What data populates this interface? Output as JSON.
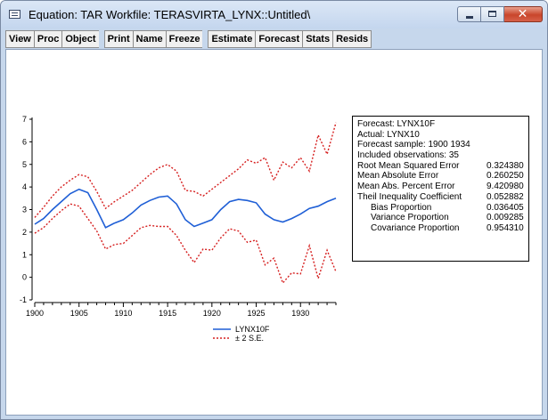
{
  "window": {
    "title": "Equation: TAR   Workfile: TERASVIRTA_LYNX::Untitled\\",
    "close_glyph": "✕"
  },
  "toolbar": {
    "groups": [
      [
        "View",
        "Proc",
        "Object"
      ],
      [
        "Print",
        "Name",
        "Freeze"
      ],
      [
        "Estimate",
        "Forecast",
        "Stats",
        "Resids"
      ]
    ]
  },
  "stats": {
    "header_lines": [
      "Forecast: LYNX10F",
      "Actual: LYNX10",
      "Forecast sample: 1900 1934",
      "Included observations: 35"
    ],
    "rows": [
      {
        "label": "Root Mean Squared Error",
        "value": "0.324380",
        "indent": false
      },
      {
        "label": "Mean Absolute Error",
        "value": "0.260250",
        "indent": false
      },
      {
        "label": "Mean Abs. Percent Error",
        "value": "9.420980",
        "indent": false
      },
      {
        "label": "Theil Inequality Coefficient",
        "value": "0.052882",
        "indent": false
      },
      {
        "label": "Bias Proportion",
        "value": "0.036405",
        "indent": true
      },
      {
        "label": "Variance Proportion",
        "value": "0.009285",
        "indent": true
      },
      {
        "label": "Covariance Proportion",
        "value": "0.954310",
        "indent": true
      }
    ]
  },
  "icons": {
    "app": "equation-window-icon",
    "minimize": "minimize-icon",
    "maximize": "maximize-icon",
    "close": "close-icon"
  },
  "colors": {
    "forecast": "#1f5fd6",
    "band": "#d62020"
  },
  "chart_data": {
    "type": "line",
    "x": [
      1900,
      1901,
      1902,
      1903,
      1904,
      1905,
      1906,
      1907,
      1908,
      1909,
      1910,
      1911,
      1912,
      1913,
      1914,
      1915,
      1916,
      1917,
      1918,
      1919,
      1920,
      1921,
      1922,
      1923,
      1924,
      1925,
      1926,
      1927,
      1928,
      1929,
      1930,
      1931,
      1932,
      1933,
      1934
    ],
    "series": [
      {
        "name": "LYNX10F",
        "style": "solid",
        "color": "#1f5fd6",
        "values": [
          2.35,
          2.6,
          3.0,
          3.35,
          3.7,
          3.9,
          3.75,
          3.0,
          2.2,
          2.4,
          2.55,
          2.85,
          3.2,
          3.4,
          3.55,
          3.6,
          3.25,
          2.55,
          2.25,
          2.4,
          2.55,
          3.0,
          3.35,
          3.45,
          3.4,
          3.3,
          2.8,
          2.55,
          2.45,
          2.6,
          2.8,
          3.05,
          3.15,
          3.35,
          3.5
        ]
      },
      {
        "name": "± 2 S.E.",
        "style": "dotted",
        "color": "#d62020",
        "values": [
          2.65,
          3.1,
          3.6,
          4.0,
          4.3,
          4.55,
          4.45,
          3.8,
          3.05,
          3.35,
          3.6,
          3.85,
          4.2,
          4.55,
          4.85,
          5.0,
          4.7,
          3.85,
          3.8,
          3.6,
          3.9,
          4.2,
          4.5,
          4.8,
          5.2,
          5.05,
          5.3,
          4.3,
          5.1,
          4.85,
          5.3,
          4.7,
          6.3,
          5.45,
          6.85
        ]
      },
      {
        "name": "",
        "style": "dotted",
        "color": "#d62020",
        "values": [
          1.95,
          2.2,
          2.6,
          2.95,
          3.25,
          3.15,
          2.6,
          2.05,
          1.25,
          1.45,
          1.5,
          1.85,
          2.2,
          2.3,
          2.25,
          2.25,
          1.85,
          1.2,
          0.65,
          1.25,
          1.2,
          1.75,
          2.15,
          2.05,
          1.55,
          1.65,
          0.55,
          0.85,
          -0.25,
          0.2,
          0.15,
          1.4,
          -0.05,
          1.2,
          0.25
        ]
      }
    ],
    "xticks": [
      "1900",
      "1905",
      "1910",
      "1915",
      "1920",
      "1925",
      "1930"
    ],
    "yticks": [
      "-1",
      "0",
      "1",
      "2",
      "3",
      "4",
      "5",
      "6",
      "7"
    ],
    "xlim": [
      1900,
      1934
    ],
    "ylim": [
      -1,
      7
    ],
    "legend": {
      "position": "bottom-center",
      "entries": [
        "LYNX10F",
        "± 2 S.E."
      ]
    }
  }
}
